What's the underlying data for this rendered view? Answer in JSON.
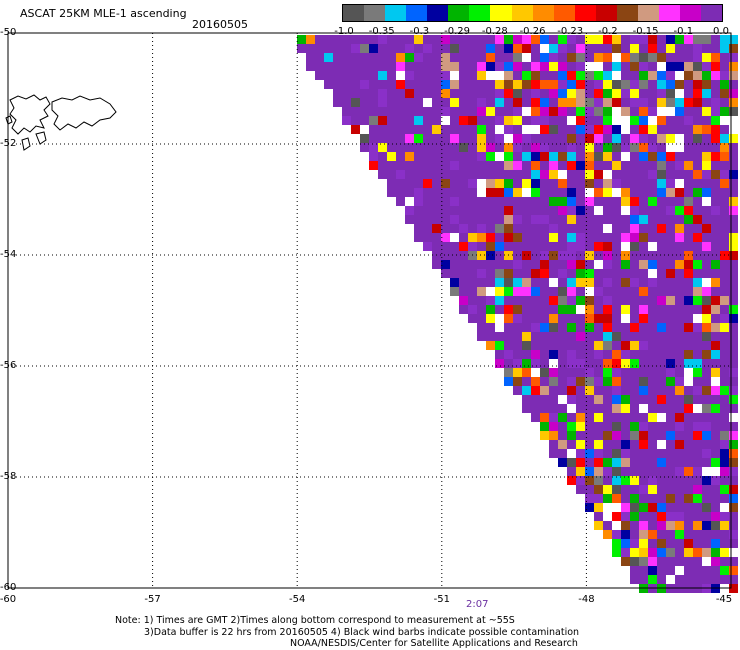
{
  "header": {
    "title": "ASCAT 25KM MLE-1 ascending",
    "date": "20160505"
  },
  "colorbar": {
    "colors": [
      "#555555",
      "#7a7a7a",
      "#00c8f0",
      "#0064ff",
      "#0000a0",
      "#00b400",
      "#00f000",
      "#ffff00",
      "#ffc800",
      "#ff8c00",
      "#ff5a00",
      "#ff0000",
      "#c80000",
      "#8b4513",
      "#d09a80",
      "#ff32ff",
      "#c800c8",
      "#7d2cb4"
    ],
    "labels": [
      "-1.0",
      "-0.35",
      "-0.3",
      "-0.29",
      "-0.28",
      "-0.26",
      "-0.23",
      "-0.2",
      "-0.15",
      "-0.1",
      "0.0"
    ]
  },
  "map": {
    "lat_labels": [
      "-50",
      "-52",
      "-54",
      "-56",
      "-58",
      "-60"
    ],
    "lon_labels": [
      "-60",
      "-57",
      "-54",
      "-51",
      "-48",
      "-45"
    ],
    "lat_range": [
      -60,
      -50
    ],
    "lon_range": [
      -60,
      -45
    ],
    "swath_base_color": "#7d2cb4",
    "time_label": "2:07"
  },
  "notes": {
    "line1": "Note: 1) Times are GMT 2)Times along bottom correspond to measurement at ~55S",
    "line2": "3)Data buffer is 22 hrs from 20160505 4) Black wind barbs indicate possible contamination",
    "line3": "NOAA/NESDIS/Center for Satellite Applications and Research"
  }
}
